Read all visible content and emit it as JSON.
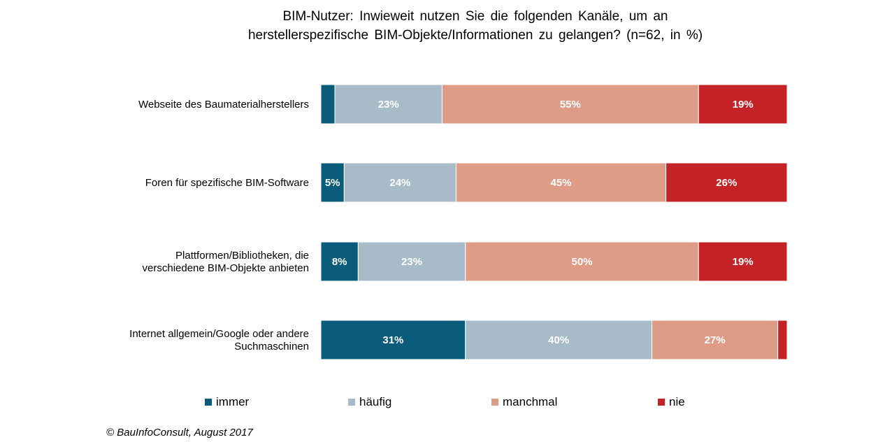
{
  "title_line1": "BIM-Nutzer:  Inwieweit nutzen Sie die folgenden Kanäle, um an",
  "title_line2": "herstellerspezifische  BIM-Objekte/Informationen  zu gelangen? (n=62, in %)",
  "source": "© BauInfoConsult, August 2017",
  "colors": {
    "immer": "#0b5c7a",
    "haeufig": "#a7bbc9",
    "manchmal": "#de9c87",
    "nie": "#c42226"
  },
  "chart_data": {
    "type": "bar",
    "orientation": "horizontal",
    "stacked": true,
    "percent": true,
    "categories": [
      [
        "Webseite des Baumaterialherstellers"
      ],
      [
        "Foren für spezifische BIM-Software"
      ],
      [
        "Plattformen/Bibliotheken, die",
        "verschiedene BIM-Objekte anbieten"
      ],
      [
        "Internet allgemein/Google oder andere",
        "Suchmaschinen"
      ]
    ],
    "series": [
      {
        "name": "immer",
        "color": "#0b5c7a",
        "label_color": "#ffffff",
        "values": [
          3,
          5,
          8,
          31
        ],
        "labels": [
          "",
          "5%",
          "8%",
          "31%"
        ]
      },
      {
        "name": "häufig",
        "color": "#a7bbc9",
        "label_color": "#ffffff",
        "values": [
          23,
          24,
          23,
          40
        ],
        "labels": [
          "23%",
          "24%",
          "23%",
          "40%"
        ]
      },
      {
        "name": "manchmal",
        "color": "#de9c87",
        "label_color": "#ffffff",
        "values": [
          55,
          45,
          50,
          27
        ],
        "labels": [
          "55%",
          "45%",
          "50%",
          "27%"
        ]
      },
      {
        "name": "nie",
        "color": "#c42226",
        "label_color": "#ffffff",
        "values": [
          19,
          26,
          19,
          2
        ],
        "labels": [
          "19%",
          "26%",
          "19%",
          ""
        ]
      }
    ],
    "xlim": [
      0,
      100
    ],
    "legend_position": "bottom",
    "grid": false
  }
}
